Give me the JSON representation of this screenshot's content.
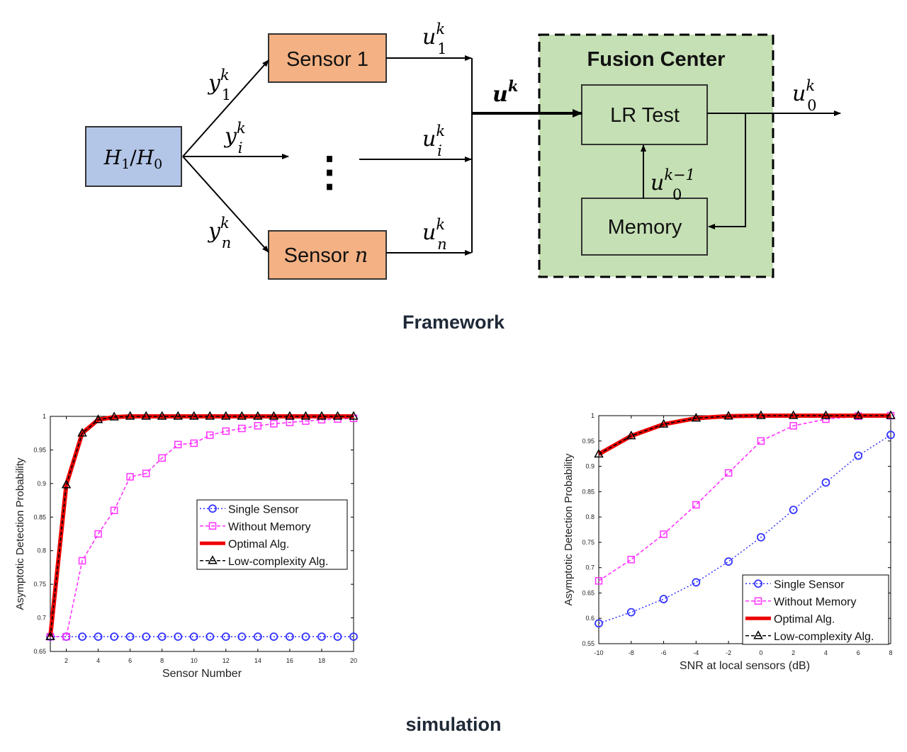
{
  "framework": {
    "caption": "Framework",
    "hypothesis": {
      "main": "H",
      "sub1": "1",
      "sep": "/",
      "main2": "H",
      "sub2": "0"
    },
    "sensor1": {
      "label": "Sensor 1"
    },
    "sensorn": {
      "label": "Sensor ",
      "n": "n"
    },
    "dots": "⋮",
    "signals": {
      "y1": {
        "base": "y",
        "sub": "1",
        "sup": "k"
      },
      "yi": {
        "base": "y",
        "sub": "i",
        "sup": "k"
      },
      "yn": {
        "base": "y",
        "sub": "n",
        "sup": "k"
      },
      "u1": {
        "base": "u",
        "sub": "1",
        "sup": "k"
      },
      "ui": {
        "base": "u",
        "sub": "i",
        "sup": "k"
      },
      "un": {
        "base": "u",
        "sub": "n",
        "sup": "k"
      },
      "uk": {
        "base": "u",
        "sup": "k"
      },
      "u0": {
        "base": "u",
        "sub": "0",
        "sup": "k"
      },
      "u0prev": {
        "base": "u",
        "sub": "0",
        "sup": "k−1"
      }
    },
    "fusion": {
      "title": "Fusion Center",
      "lr_label": "LR Test",
      "memory_label": "Memory"
    },
    "colors": {
      "hypothesis": "#b4c6e7",
      "sensor": "#f4b183",
      "fusion": "#c5e0b4"
    }
  },
  "simulation": {
    "caption": "simulation"
  },
  "chart_data": [
    {
      "type": "line",
      "xlabel": "Sensor Number",
      "ylabel": "Asymptotic Detection Probability",
      "xlim": [
        1,
        20
      ],
      "ylim": [
        0.65,
        1
      ],
      "xticks": [
        2,
        4,
        6,
        8,
        10,
        12,
        14,
        16,
        18,
        20
      ],
      "yticks": [
        0.65,
        0.7,
        0.75,
        0.8,
        0.85,
        0.9,
        0.95,
        1
      ],
      "ytick_labels": [
        "0.65",
        "0.7",
        "0.75",
        "0.8",
        "0.85",
        "0.9",
        "0.95",
        "1"
      ],
      "legend_position": "center-right",
      "x": [
        1,
        2,
        3,
        4,
        5,
        6,
        7,
        8,
        9,
        10,
        11,
        12,
        13,
        14,
        15,
        16,
        17,
        18,
        19,
        20
      ],
      "series": [
        {
          "name": "Single Sensor",
          "color": "#3333ff",
          "style": "dotted",
          "marker": "circle",
          "values": [
            0.672,
            0.672,
            0.672,
            0.672,
            0.672,
            0.672,
            0.672,
            0.672,
            0.672,
            0.672,
            0.672,
            0.672,
            0.672,
            0.672,
            0.672,
            0.672,
            0.672,
            0.672,
            0.672,
            0.672
          ]
        },
        {
          "name": "Without Memory",
          "color": "#ff33ff",
          "style": "dashed",
          "marker": "square",
          "values": [
            0.672,
            0.672,
            0.785,
            0.825,
            0.86,
            0.91,
            0.915,
            0.938,
            0.958,
            0.96,
            0.972,
            0.978,
            0.982,
            0.986,
            0.989,
            0.991,
            0.993,
            0.995,
            0.996,
            0.997
          ]
        },
        {
          "name": "Optimal Alg.",
          "color": "#ee0000",
          "style": "solid-thick",
          "marker": "none",
          "values": [
            0.672,
            0.898,
            0.975,
            0.995,
            0.999,
            1,
            1,
            1,
            1,
            1,
            1,
            1,
            1,
            1,
            1,
            1,
            1,
            1,
            1,
            1
          ]
        },
        {
          "name": "Low-complexity Alg.",
          "color": "#000000",
          "style": "dashed",
          "marker": "triangle",
          "values": [
            0.672,
            0.898,
            0.975,
            0.995,
            0.999,
            1,
            1,
            1,
            1,
            1,
            1,
            1,
            1,
            1,
            1,
            1,
            1,
            1,
            1,
            1
          ]
        }
      ]
    },
    {
      "type": "line",
      "xlabel": "SNR at local sensors (dB)",
      "ylabel": "Asymptotic Detection Probability",
      "xlim": [
        -10,
        8
      ],
      "ylim": [
        0.55,
        1
      ],
      "xticks": [
        -10,
        -8,
        -6,
        -4,
        -2,
        0,
        2,
        4,
        6,
        8
      ],
      "yticks": [
        0.55,
        0.6,
        0.65,
        0.7,
        0.75,
        0.8,
        0.85,
        0.9,
        0.95,
        1
      ],
      "ytick_labels": [
        "0.55",
        "0.6",
        "0.65",
        "0.7",
        "0.75",
        "0.8",
        "0.85",
        "0.9",
        "0.95",
        "1"
      ],
      "legend_position": "bottom-right",
      "x": [
        -10,
        -8,
        -6,
        -4,
        -2,
        0,
        2,
        4,
        6,
        8
      ],
      "series": [
        {
          "name": "Single Sensor",
          "color": "#3333ff",
          "style": "dotted",
          "marker": "circle",
          "values": [
            0.59,
            0.612,
            0.638,
            0.671,
            0.712,
            0.76,
            0.814,
            0.868,
            0.921,
            0.962
          ]
        },
        {
          "name": "Without Memory",
          "color": "#ff33ff",
          "style": "dashed",
          "marker": "square",
          "values": [
            0.674,
            0.716,
            0.766,
            0.824,
            0.887,
            0.95,
            0.98,
            0.993,
            0.999,
            1
          ]
        },
        {
          "name": "Optimal Alg.",
          "color": "#ee0000",
          "style": "solid-thick",
          "marker": "none",
          "values": [
            0.924,
            0.96,
            0.983,
            0.995,
            0.999,
            1,
            1,
            1,
            1,
            1
          ]
        },
        {
          "name": "Low-complexity Alg.",
          "color": "#000000",
          "style": "dashed",
          "marker": "triangle",
          "values": [
            0.924,
            0.96,
            0.983,
            0.995,
            0.999,
            1,
            1,
            1,
            1,
            1
          ]
        }
      ]
    }
  ]
}
